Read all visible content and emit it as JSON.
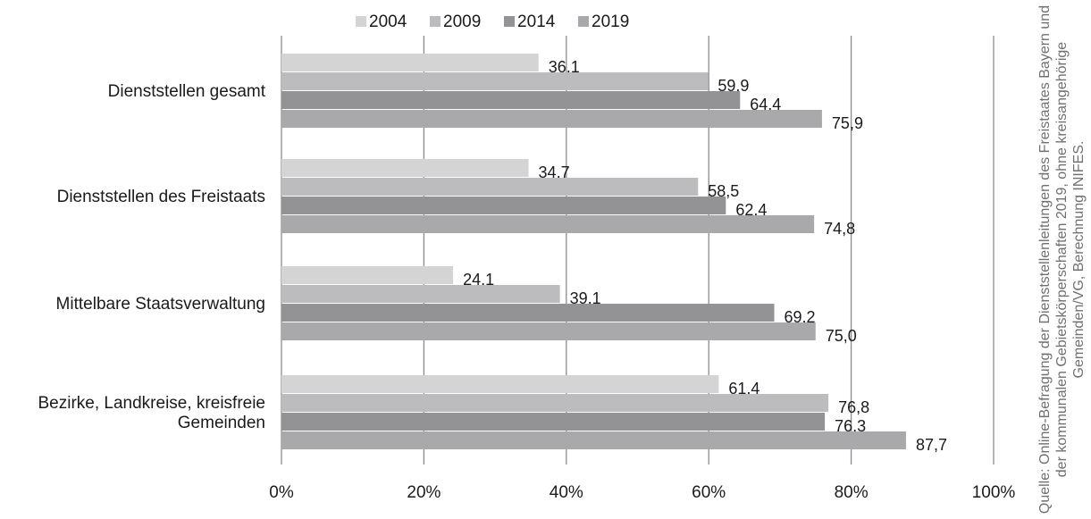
{
  "chart_data": {
    "type": "bar",
    "orientation": "horizontal",
    "categories": [
      "Dienststellen gesamt",
      "Dienststellen des Freistaats",
      "Mittelbare Staatsverwaltung",
      "Bezirke, Landkreise, kreisfreie Gemeinden"
    ],
    "series": [
      {
        "name": "2004",
        "color": "#d4d4d4",
        "values": [
          36.1,
          34.7,
          24.1,
          61.4
        ]
      },
      {
        "name": "2009",
        "color": "#bcbcbe",
        "values": [
          59.9,
          58.5,
          39.1,
          76.8
        ]
      },
      {
        "name": "2014",
        "color": "#939396",
        "values": [
          64.4,
          62.4,
          69.2,
          76.3
        ]
      },
      {
        "name": "2019",
        "color": "#a9a9ab",
        "values": [
          75.9,
          74.8,
          75.0,
          87.7
        ]
      }
    ],
    "data_labels": [
      [
        "36,1",
        "59,9",
        "64,4",
        "75,9"
      ],
      [
        "34,7",
        "58,5",
        "62,4",
        "74,8"
      ],
      [
        "24,1",
        "39,1",
        "69,2",
        "75,0"
      ],
      [
        "61,4",
        "76,8",
        "76,3",
        "87,7"
      ]
    ],
    "xlim": [
      0,
      100
    ],
    "xticks": [
      "0%",
      "20%",
      "40%",
      "60%",
      "80%",
      "100%"
    ],
    "grid": "vertical",
    "legend_position": "top"
  },
  "source_note": "Quelle: Online-Befragung der Dienststellenleitungen des Freistaates Bayern und der kommunalen Gebietskörperschaften 2019, ohne kreisangehörige Gemeinden/VG, Berechnung INIFES."
}
